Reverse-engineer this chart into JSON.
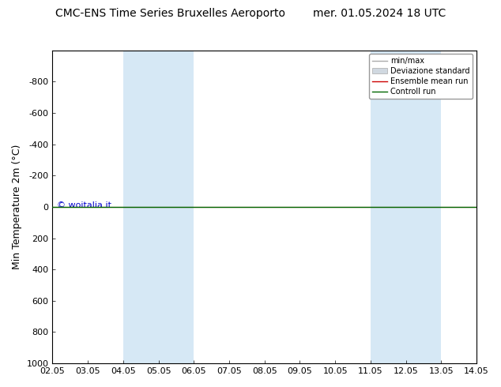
{
  "title": "CMC-ENS Time Series Bruxelles Aeroporto        mer. 01.05.2024 18 UTC",
  "ylabel": "Min Temperature 2m (°C)",
  "ylim_bottom": 1000,
  "ylim_top": -1000,
  "yticks": [
    -800,
    -600,
    -400,
    -200,
    0,
    200,
    400,
    600,
    800,
    1000
  ],
  "xlim_start": 0,
  "xlim_end": 12,
  "xtick_positions": [
    0,
    1,
    2,
    3,
    4,
    5,
    6,
    7,
    8,
    9,
    10,
    11,
    12
  ],
  "xtick_labels": [
    "02.05",
    "03.05",
    "04.05",
    "05.05",
    "06.05",
    "07.05",
    "08.05",
    "09.05",
    "10.05",
    "11.05",
    "12.05",
    "13.05",
    "14.05"
  ],
  "shaded_bands": [
    [
      2,
      3
    ],
    [
      3,
      4
    ],
    [
      9,
      10
    ],
    [
      10,
      11
    ]
  ],
  "shaded_color": "#d6e8f5",
  "shaded_edge_color": "#b8d4ec",
  "green_line_y": 0,
  "red_line_y": 0,
  "watermark": "© woitalia.it",
  "watermark_color": "#0000cc",
  "legend_labels": [
    "min/max",
    "Deviazione standard",
    "Ensemble mean run",
    "Controll run"
  ],
  "legend_line_color": "#aaaaaa",
  "legend_fill_color": "#d0d8e0",
  "legend_red_color": "#cc0000",
  "legend_green_color": "#006600",
  "background_color": "#ffffff",
  "title_fontsize": 10,
  "tick_fontsize": 8,
  "ylabel_fontsize": 9,
  "legend_fontsize": 7
}
